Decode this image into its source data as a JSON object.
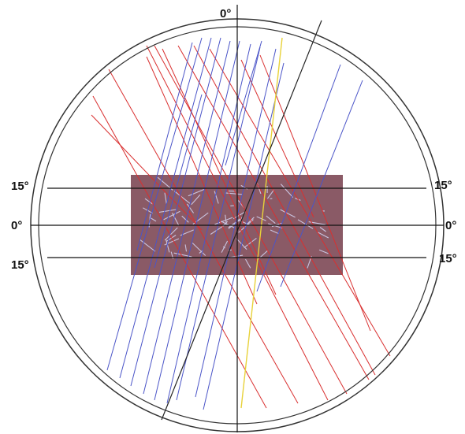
{
  "labels": {
    "top": "0°",
    "left_upper": "15°",
    "left_middle": "0°",
    "left_lower": "15°",
    "right_upper": "15°",
    "right_middle": "0°",
    "right_lower": "15°"
  },
  "colors": {
    "background": "#ffffff",
    "circle": "#333333",
    "axis": "#111111",
    "panel": "#8a5a66",
    "panel_texture": "#c9c4e0",
    "red_lines": "#d93030",
    "blue_lines": "#4b55c8",
    "yellow_line": "#e8d23a",
    "black_line": "#222222"
  }
}
